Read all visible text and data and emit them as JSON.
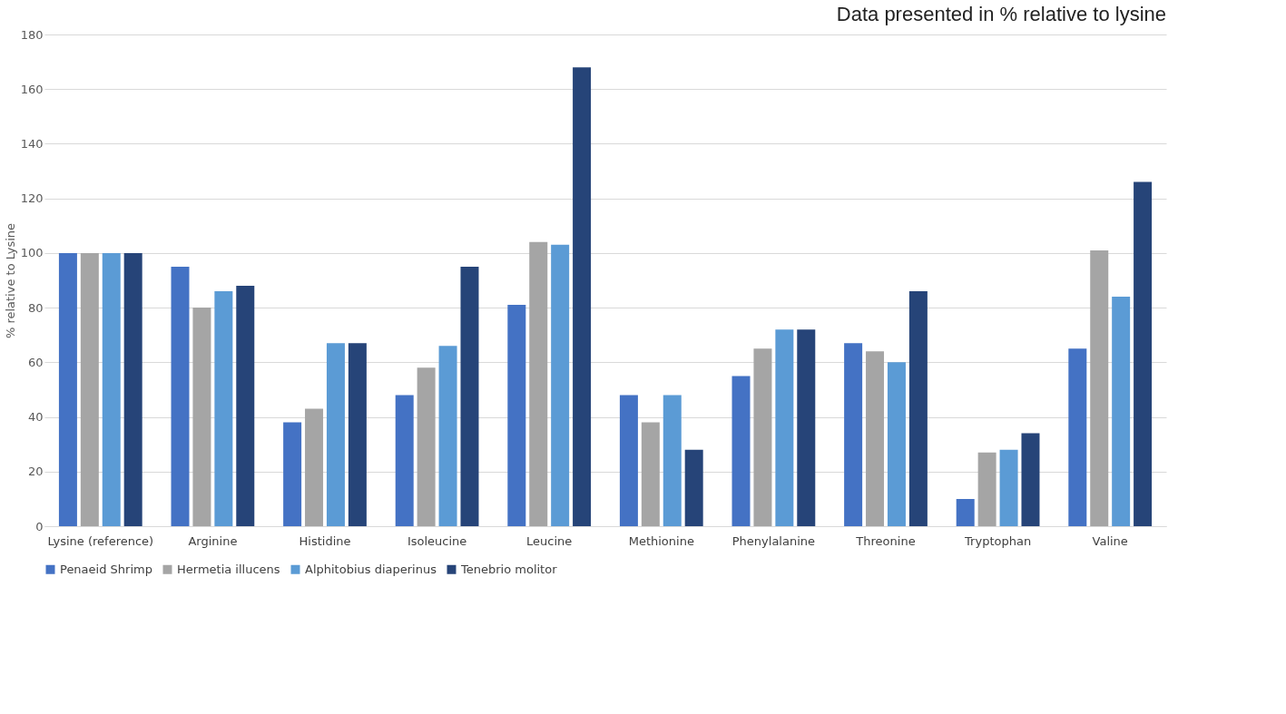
{
  "chart_data": {
    "type": "bar",
    "title": "Data presented in % relative to lysine",
    "ylabel": "% relative to Lysine",
    "categories": [
      "Lysine (reference)",
      "Arginine",
      "Histidine",
      "Isoleucine",
      "Leucine",
      "Methionine",
      "Phenylalanine",
      "Threonine",
      "Tryptophan",
      "Valine"
    ],
    "series": [
      {
        "name": "Penaeid Shrimp",
        "color": "#4472c4",
        "values": [
          100,
          95,
          38,
          48,
          81,
          48,
          55,
          67,
          10,
          65
        ]
      },
      {
        "name": "Hermetia illucens",
        "color": "#a5a5a5",
        "values": [
          100,
          80,
          43,
          58,
          104,
          38,
          65,
          64,
          27,
          101
        ]
      },
      {
        "name": "Alphitobius diaperinus",
        "color": "#5b9bd5",
        "values": [
          100,
          86,
          67,
          66,
          103,
          48,
          72,
          60,
          28,
          84
        ]
      },
      {
        "name": "Tenebrio molitor",
        "color": "#264478",
        "values": [
          100,
          88,
          67,
          95,
          168,
          28,
          72,
          86,
          34,
          126
        ]
      }
    ],
    "ylim": [
      0,
      180
    ],
    "yticks": [
      0,
      20,
      40,
      60,
      80,
      100,
      120,
      140,
      160,
      180
    ],
    "grid": "y",
    "legend": "bottom"
  }
}
